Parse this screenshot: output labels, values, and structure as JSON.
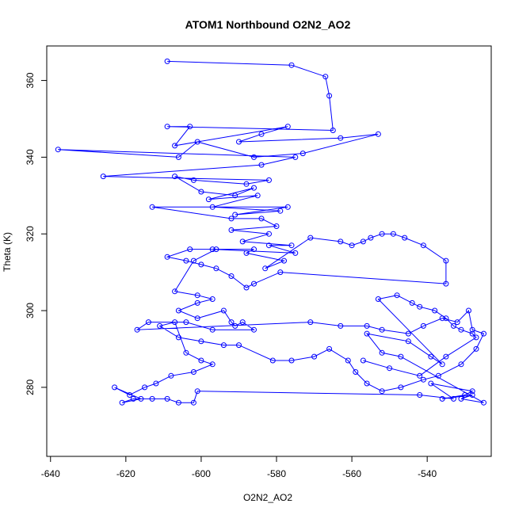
{
  "chart_data": {
    "type": "scatter",
    "title": "ATOM1 Northbound O2N2_AO2",
    "xlabel": "O2N2_AO2",
    "ylabel": "Theta (K)",
    "xlim": [
      -641,
      -523
    ],
    "ylim": [
      262,
      369
    ],
    "xticks": [
      -640,
      -620,
      -600,
      -580,
      -560,
      -540
    ],
    "yticks": [
      280,
      300,
      320,
      340,
      360
    ],
    "grid": false,
    "legend": "none",
    "color": "#0000ff",
    "series": [
      {
        "x": [
          -609,
          -576,
          -567,
          -566,
          -565,
          -609,
          -603,
          -607,
          -577,
          -584,
          -590,
          -563,
          -553,
          -573,
          -586,
          -601,
          -606,
          -638,
          -575,
          -584,
          -626,
          -582,
          -588,
          -602,
          -607,
          -600,
          -591,
          -586,
          -598,
          -585,
          -597,
          -579,
          -591,
          -577,
          -613,
          -592,
          -584,
          -580,
          -592,
          -582,
          -589,
          -576,
          -582,
          -575,
          -597,
          -586,
          -588,
          -578,
          -583,
          -571,
          -563,
          -560,
          -557,
          -555,
          -552,
          -549,
          -546,
          -541,
          -535,
          -535,
          -579,
          -586,
          -588,
          -592,
          -596,
          -600,
          -604,
          -609,
          -603,
          -596,
          -602,
          -607,
          -601,
          -597,
          -601,
          -606,
          -601,
          -594,
          -592,
          -591,
          -589,
          -586,
          -597,
          -604,
          -614,
          -617,
          -571,
          -563,
          -556,
          -552,
          -545,
          -541,
          -536,
          -532,
          -529,
          -528,
          -525,
          -527,
          -531,
          -537,
          -541,
          -547,
          -552,
          -556,
          -559,
          -561,
          -566,
          -570,
          -576,
          -581,
          -590,
          -594,
          -600,
          -606,
          -611,
          -607,
          -604,
          -600,
          -597,
          -602,
          -608,
          -612,
          -615,
          -619,
          -623,
          -616,
          -621,
          -618,
          -613,
          -609,
          -606,
          -602,
          -601,
          -542,
          -533,
          -539,
          -528,
          -530,
          -536,
          -528,
          -531,
          -525,
          -547,
          -552,
          -556,
          -545,
          -539,
          -536,
          -553,
          -548,
          -544,
          -542,
          -538,
          -535,
          -533,
          -531,
          -528,
          -527,
          -535,
          -542,
          -550,
          -557
        ],
        "y": [
          365,
          364,
          361,
          356,
          347,
          348,
          348,
          343,
          348,
          346,
          344,
          345,
          346,
          341,
          340,
          344,
          340,
          342,
          340,
          338,
          335,
          334,
          333,
          334,
          335,
          331,
          330,
          332,
          329,
          330,
          327,
          326,
          325,
          327,
          327,
          324,
          324,
          322,
          321,
          320,
          318,
          317,
          317,
          315,
          316,
          316,
          315,
          313,
          311,
          319,
          318,
          317,
          318,
          319,
          320,
          320,
          319,
          317,
          313,
          307,
          310,
          307,
          306,
          309,
          311,
          312,
          313,
          314,
          316,
          316,
          313,
          305,
          304,
          303,
          302,
          300,
          298,
          300,
          297,
          296,
          297,
          295,
          295,
          297,
          297,
          295,
          297,
          296,
          296,
          295,
          294,
          296,
          298,
          297,
          300,
          295,
          294,
          290,
          286,
          283,
          282,
          280,
          279,
          281,
          284,
          287,
          290,
          288,
          287,
          287,
          291,
          291,
          292,
          293,
          296,
          297,
          289,
          287,
          286,
          284,
          283,
          281,
          280,
          278,
          280,
          277,
          276,
          277,
          277,
          277,
          276,
          276,
          279,
          278,
          277,
          281,
          279,
          278,
          277,
          278,
          277,
          276,
          288,
          289,
          294,
          292,
          288,
          286,
          303,
          304,
          302,
          301,
          300,
          298,
          296,
          295,
          294,
          293,
          288,
          283,
          285,
          287
        ]
      }
    ]
  }
}
